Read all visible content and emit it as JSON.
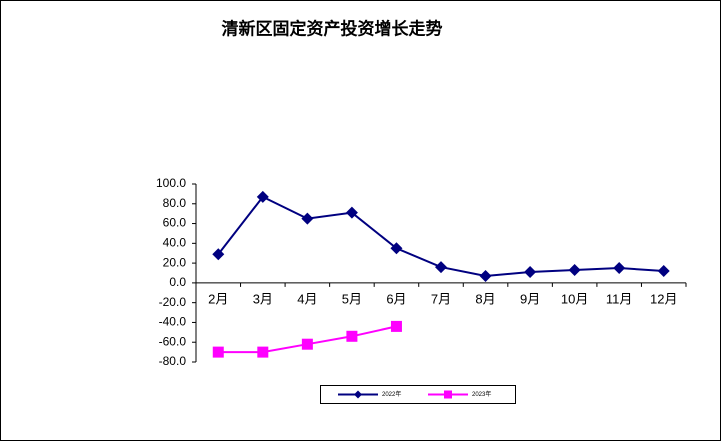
{
  "chart_data": {
    "type": "line",
    "title": "清新区固定资产投资增长走势",
    "categories": [
      "2月",
      "3月",
      "4月",
      "5月",
      "6月",
      "7月",
      "8月",
      "9月",
      "10月",
      "11月",
      "12月"
    ],
    "series": [
      {
        "name": "2022年",
        "color": "#000080",
        "marker": "diamond",
        "values": [
          29,
          87,
          65,
          71,
          35,
          16,
          7,
          11,
          13,
          15,
          12
        ]
      },
      {
        "name": "2023年",
        "color": "#ff00ff",
        "marker": "square",
        "values": [
          -70,
          -70,
          -62,
          -54,
          -44,
          null,
          null,
          null,
          null,
          null,
          null
        ]
      }
    ],
    "ylim": [
      -80,
      100
    ],
    "yticks": [
      {
        "value": -80,
        "label": "-80.0"
      },
      {
        "value": -60,
        "label": "-60.0"
      },
      {
        "value": -40,
        "label": "-40.0"
      },
      {
        "value": -20,
        "label": "-20.0"
      },
      {
        "value": 0,
        "label": "0.0"
      },
      {
        "value": 20,
        "label": "20.0"
      },
      {
        "value": 40,
        "label": "40.0"
      },
      {
        "value": 60,
        "label": "60.0"
      },
      {
        "value": 80,
        "label": "80.0"
      },
      {
        "value": 100,
        "label": "100.0"
      }
    ],
    "grid": false,
    "legend": "bottom"
  }
}
